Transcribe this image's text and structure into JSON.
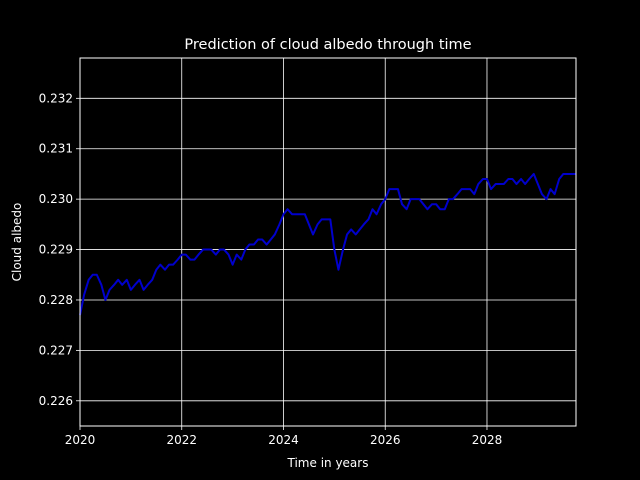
{
  "chart_data": {
    "type": "line",
    "title": "Prediction of cloud albedo through time",
    "xlabel": "Time in years",
    "ylabel": "Cloud albedo",
    "xlim": [
      2020,
      2029.75
    ],
    "ylim": [
      0.2255,
      0.2328
    ],
    "x_ticks": [
      2020,
      2022,
      2024,
      2026,
      2028
    ],
    "x_tick_labels": [
      "2020",
      "2022",
      "2024",
      "2026",
      "2028"
    ],
    "y_ticks": [
      0.226,
      0.227,
      0.228,
      0.229,
      0.23,
      0.231,
      0.232
    ],
    "y_tick_labels": [
      "0.226",
      "0.227",
      "0.228",
      "0.229",
      "0.230",
      "0.231",
      "0.232"
    ],
    "grid": true,
    "colors": {
      "background": "#000000",
      "line": "#0000cc",
      "foreground": "#ffffff"
    },
    "series": [
      {
        "x": [
          2020.0,
          2020.08,
          2020.17,
          2020.25,
          2020.33,
          2020.42,
          2020.5,
          2020.58,
          2020.67,
          2020.75,
          2020.83,
          2020.92,
          2021.0,
          2021.08,
          2021.17,
          2021.25,
          2021.33,
          2021.42,
          2021.5,
          2021.58,
          2021.67,
          2021.75,
          2021.83,
          2021.92,
          2022.0,
          2022.08,
          2022.17,
          2022.25,
          2022.33,
          2022.42,
          2022.5,
          2022.58,
          2022.67,
          2022.75,
          2022.83,
          2022.92,
          2023.0,
          2023.08,
          2023.17,
          2023.25,
          2023.33,
          2023.42,
          2023.5,
          2023.58,
          2023.67,
          2023.75,
          2023.83,
          2023.92,
          2024.0,
          2024.08,
          2024.17,
          2024.25,
          2024.33,
          2024.42,
          2024.5,
          2024.58,
          2024.67,
          2024.75,
          2024.83,
          2024.92,
          2025.0,
          2025.08,
          2025.17,
          2025.25,
          2025.33,
          2025.42,
          2025.5,
          2025.58,
          2025.67,
          2025.75,
          2025.83,
          2025.92,
          2026.0,
          2026.08,
          2026.17,
          2026.25,
          2026.33,
          2026.42,
          2026.5,
          2026.58,
          2026.67,
          2026.75,
          2026.83,
          2026.92,
          2027.0,
          2027.08,
          2027.17,
          2027.25,
          2027.33,
          2027.42,
          2027.5,
          2027.58,
          2027.67,
          2027.75,
          2027.83,
          2027.92,
          2028.0,
          2028.08,
          2028.17,
          2028.25,
          2028.33,
          2028.42,
          2028.5,
          2028.58,
          2028.67,
          2028.75,
          2028.83,
          2028.92,
          2029.0,
          2029.08,
          2029.17,
          2029.25,
          2029.33,
          2029.42,
          2029.5,
          2029.58,
          2029.67,
          2029.75
        ],
        "values": [
          0.2277,
          0.2281,
          0.2284,
          0.2285,
          0.2285,
          0.2283,
          0.228,
          0.2282,
          0.2283,
          0.2284,
          0.2283,
          0.2284,
          0.2282,
          0.2283,
          0.2284,
          0.2282,
          0.2283,
          0.2284,
          0.2286,
          0.2287,
          0.2286,
          0.2287,
          0.2287,
          0.2288,
          0.2289,
          0.2289,
          0.2288,
          0.2288,
          0.2289,
          0.229,
          0.229,
          0.229,
          0.2289,
          0.229,
          0.229,
          0.2289,
          0.2287,
          0.2289,
          0.2288,
          0.229,
          0.2291,
          0.2291,
          0.2292,
          0.2292,
          0.2291,
          0.2292,
          0.2293,
          0.2295,
          0.2297,
          0.2298,
          0.2297,
          0.2297,
          0.2297,
          0.2297,
          0.2295,
          0.2293,
          0.2295,
          0.2296,
          0.2296,
          0.2296,
          0.229,
          0.2286,
          0.229,
          0.2293,
          0.2294,
          0.2293,
          0.2294,
          0.2295,
          0.2296,
          0.2298,
          0.2297,
          0.2299,
          0.23,
          0.2302,
          0.2302,
          0.2302,
          0.2299,
          0.2298,
          0.23,
          0.23,
          0.23,
          0.2299,
          0.2298,
          0.2299,
          0.2299,
          0.2298,
          0.2298,
          0.23,
          0.23,
          0.2301,
          0.2302,
          0.2302,
          0.2302,
          0.2301,
          0.2303,
          0.2304,
          0.2304,
          0.2302,
          0.2303,
          0.2303,
          0.2303,
          0.2304,
          0.2304,
          0.2303,
          0.2304,
          0.2303,
          0.2304,
          0.2305,
          0.2303,
          0.2301,
          0.23,
          0.2302,
          0.2301,
          0.2304,
          0.2305,
          0.2305,
          0.2305,
          0.2305
        ]
      }
    ]
  }
}
